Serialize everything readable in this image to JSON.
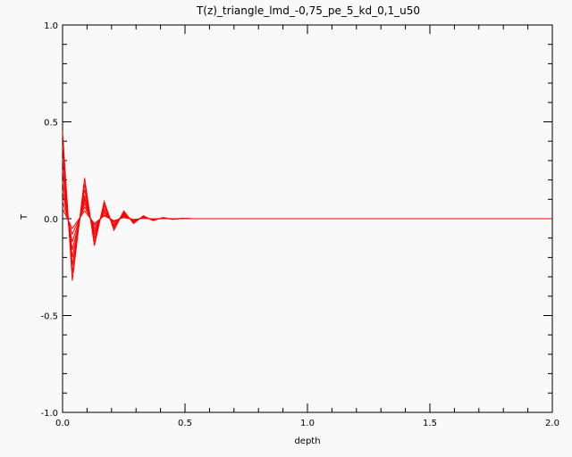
{
  "chart_data": {
    "type": "line",
    "title": "T(z)_triangle_lmd_-0,75_pe_5_kd_0,1_u50",
    "xlabel": "depth",
    "ylabel": "T",
    "xlim": [
      0.0,
      2.0
    ],
    "ylim": [
      -1.0,
      1.0
    ],
    "x_ticks": [
      0.0,
      0.5,
      1.0,
      1.5,
      2.0
    ],
    "x_tick_labels": [
      "0.0",
      "0.5",
      "1.0",
      "1.5",
      "2.0"
    ],
    "y_ticks": [
      -1.0,
      -0.5,
      0.0,
      0.5,
      1.0
    ],
    "y_tick_labels": [
      "-1.0",
      "-0.5",
      "0.0",
      "0.5",
      "1.0"
    ],
    "grid": false,
    "line_color": "#ff0000",
    "x": [
      0.0,
      0.04,
      0.09,
      0.13,
      0.17,
      0.21,
      0.25,
      0.29,
      0.33,
      0.37,
      0.41,
      0.45,
      0.49,
      0.53,
      2.0
    ],
    "series": [
      {
        "values": [
          0.45,
          -0.32,
          0.21,
          -0.14,
          0.09,
          -0.06,
          0.04,
          -0.025,
          0.015,
          -0.01,
          0.006,
          -0.004,
          0.002,
          0.0,
          0.0
        ]
      },
      {
        "values": [
          0.38,
          -0.28,
          0.18,
          -0.12,
          0.08,
          -0.05,
          0.035,
          -0.02,
          0.012,
          -0.008,
          0.005,
          -0.003,
          0.002,
          0.0,
          0.0
        ]
      },
      {
        "values": [
          0.31,
          -0.24,
          0.15,
          -0.1,
          0.065,
          -0.04,
          0.03,
          -0.018,
          0.01,
          -0.007,
          0.004,
          -0.002,
          0.001,
          0.0,
          0.0
        ]
      },
      {
        "values": [
          0.25,
          -0.2,
          0.12,
          -0.08,
          0.05,
          -0.035,
          0.025,
          -0.015,
          0.008,
          -0.005,
          0.003,
          -0.002,
          0.001,
          0.0,
          0.0
        ]
      },
      {
        "values": [
          0.19,
          -0.16,
          0.1,
          -0.065,
          0.04,
          -0.03,
          0.02,
          -0.012,
          0.006,
          -0.004,
          0.002,
          -0.001,
          0.0,
          0.0,
          0.0
        ]
      },
      {
        "values": [
          0.14,
          -0.12,
          0.08,
          -0.05,
          0.03,
          -0.02,
          0.015,
          -0.01,
          0.005,
          -0.003,
          0.002,
          -0.001,
          0.0,
          0.0,
          0.0
        ]
      },
      {
        "values": [
          0.09,
          -0.08,
          0.06,
          -0.035,
          0.02,
          -0.015,
          0.01,
          -0.006,
          0.003,
          -0.002,
          0.001,
          0.0,
          0.0,
          0.0,
          0.0
        ]
      },
      {
        "values": [
          0.05,
          -0.05,
          0.04,
          -0.025,
          0.015,
          -0.01,
          0.006,
          -0.004,
          0.002,
          -0.001,
          0.0,
          0.0,
          0.0,
          0.0,
          0.0
        ]
      }
    ]
  }
}
